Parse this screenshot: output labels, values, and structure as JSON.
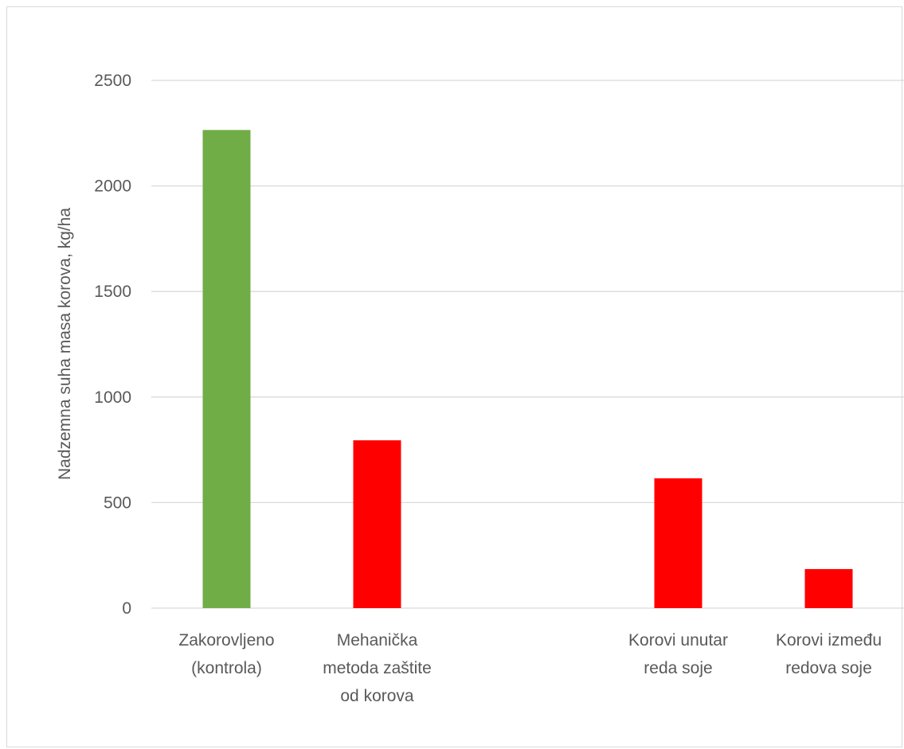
{
  "chart_data": {
    "type": "bar",
    "title": "",
    "xlabel": "",
    "ylabel": "Nadzemna suha masa korova, kg/ha",
    "ylim": [
      0,
      2500
    ],
    "yticks": [
      0,
      500,
      1000,
      1500,
      2000,
      2500
    ],
    "grid": true,
    "legend": "none",
    "categories": [
      [
        "Zakorovljeno",
        "(kontrola)"
      ],
      [
        "Mehanička",
        "metoda zaštite",
        "od korova"
      ],
      [
        ""
      ],
      [
        "Korovi unutar",
        "reda soje"
      ],
      [
        "Korovi između",
        "redova soje"
      ]
    ],
    "values": [
      2265,
      795,
      null,
      615,
      185
    ],
    "colors": [
      "#70ad47",
      "#ff0000",
      null,
      "#ff0000",
      "#ff0000"
    ]
  },
  "colors": {
    "gridline": "#d9d9d9",
    "axis_text": "#595959"
  }
}
